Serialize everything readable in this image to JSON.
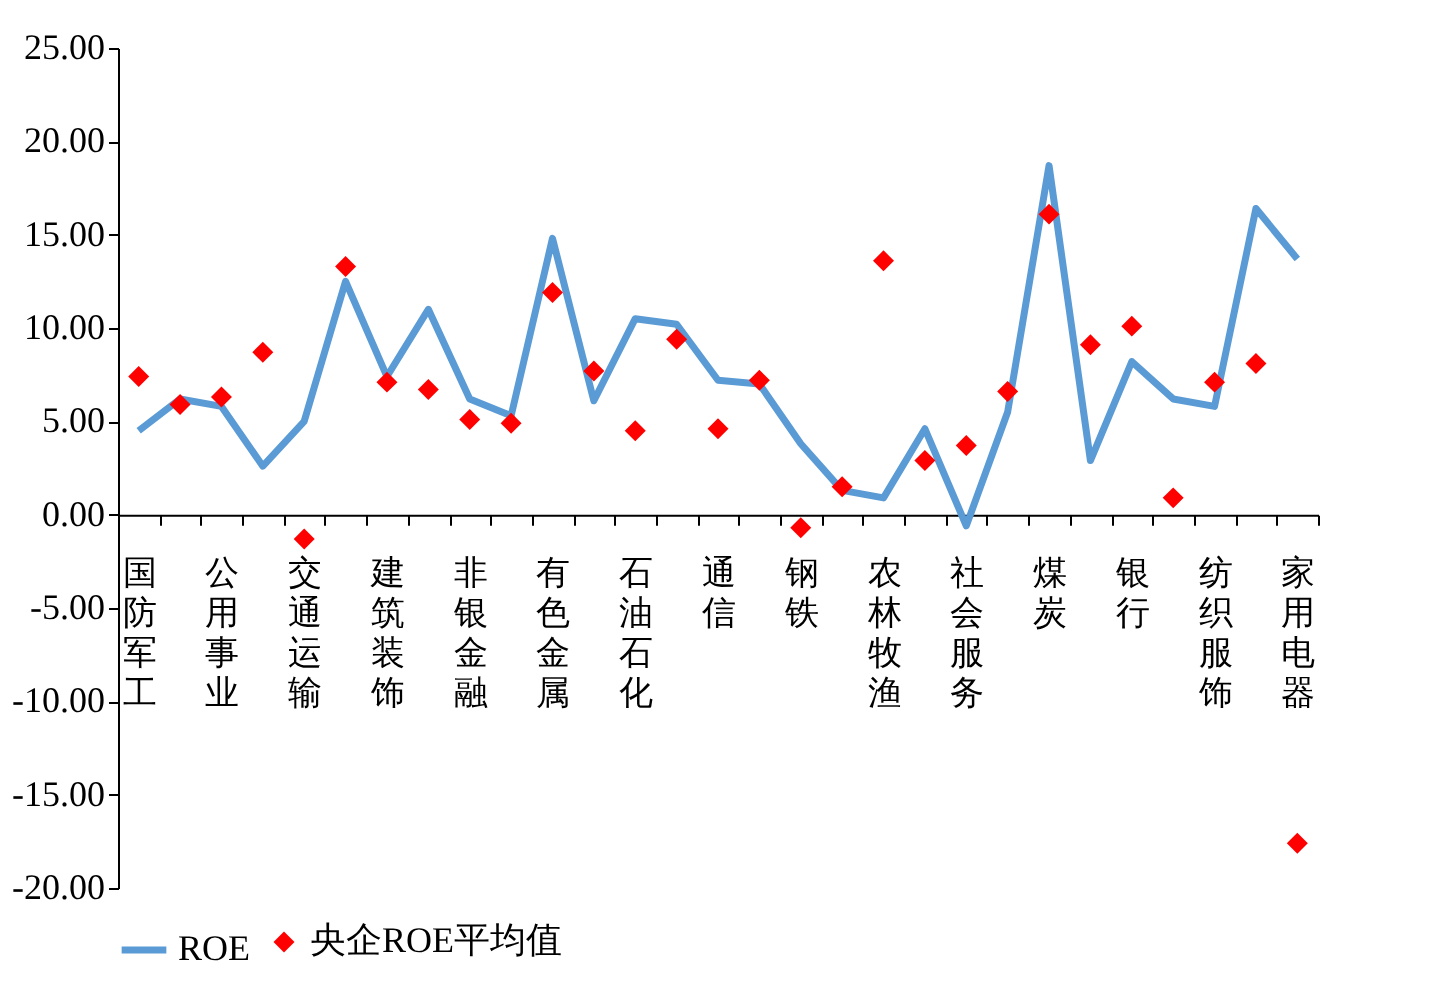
{
  "chart_data": {
    "type": "line",
    "categories": [
      "国防军工",
      null,
      "公用事业",
      null,
      "交通运输",
      null,
      "建筑装饰",
      null,
      "非银金融",
      null,
      "有色金属",
      null,
      "石油石化",
      null,
      "通信",
      null,
      "钢铁",
      null,
      "农林牧渔",
      null,
      "社会服务",
      null,
      "煤炭",
      null,
      "银行",
      null,
      "纺织服饰",
      null,
      "家用电器"
    ],
    "series": [
      {
        "name": "ROE",
        "color": "#5b9bd5",
        "marker": "none",
        "values": [
          4.5,
          6.2,
          5.8,
          2.6,
          5.0,
          12.5,
          7.4,
          11.0,
          6.2,
          5.3,
          14.8,
          6.1,
          10.5,
          10.2,
          7.2,
          7.0,
          3.8,
          1.3,
          0.9,
          4.6,
          -0.6,
          5.5,
          18.7,
          2.9,
          8.2,
          6.2,
          5.8,
          16.4,
          13.7
        ]
      },
      {
        "name": "央企ROE平均值",
        "type": "scatter",
        "color": "#ff0000",
        "marker": "diamond",
        "values": [
          7.4,
          5.9,
          6.3,
          8.7,
          -1.3,
          13.3,
          7.1,
          6.7,
          5.1,
          4.9,
          11.9,
          7.7,
          4.5,
          9.4,
          4.6,
          7.2,
          -0.7,
          1.5,
          13.6,
          2.9,
          3.7,
          6.6,
          16.1,
          9.1,
          10.1,
          0.9,
          7.1,
          8.1,
          -17.6
        ]
      }
    ],
    "ylim": [
      -20,
      25
    ],
    "yticks": [
      {
        "value": -20,
        "label": "-20.00"
      },
      {
        "value": -15,
        "label": "-15.00"
      },
      {
        "value": -10,
        "label": "-10.00"
      },
      {
        "value": -5,
        "label": "-5.00"
      },
      {
        "value": 0,
        "label": "0.00"
      },
      {
        "value": 5,
        "label": "5.00"
      },
      {
        "value": 10,
        "label": "10.00"
      },
      {
        "value": 15,
        "label": "15.00"
      },
      {
        "value": 20,
        "label": "20.00"
      },
      {
        "value": 25,
        "label": "25.00"
      }
    ],
    "grid": false,
    "legend": "bottom"
  }
}
